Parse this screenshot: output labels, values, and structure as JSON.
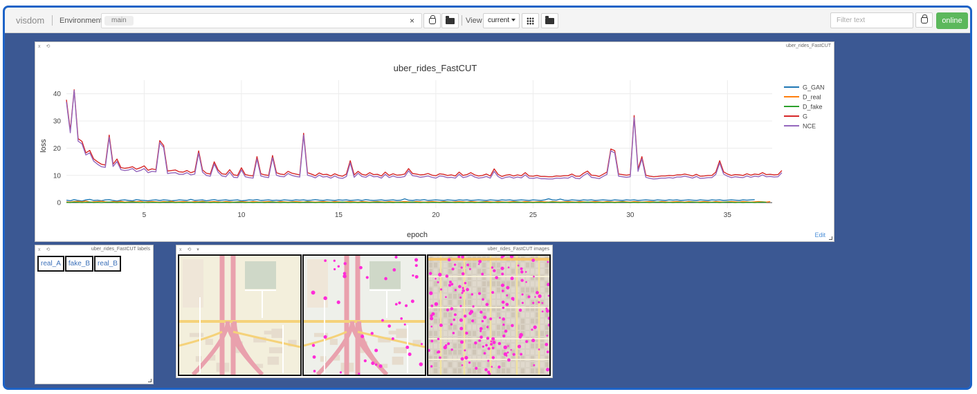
{
  "topbar": {
    "brand": "visdom",
    "environment_label": "Environment",
    "environment_tag": "main",
    "clear_symbol": "×",
    "view_label": "View",
    "view_value": "current",
    "filter_placeholder": "Filter text",
    "status": "online"
  },
  "plot_pane": {
    "window_title": "uber_rides_FastCUT",
    "edit_label": "Edit",
    "chart_data": {
      "type": "line",
      "title": "uber_rides_FastCUT",
      "xlabel": "epoch",
      "ylabel": "loss",
      "xlim": [
        1.0,
        37.3
      ],
      "ylim": [
        -2,
        45
      ],
      "x_ticks": [
        5,
        10,
        15,
        20,
        25,
        30,
        35
      ],
      "y_ticks": [
        0,
        10,
        20,
        30,
        40
      ],
      "grid": true,
      "legend_position": "right",
      "x_start": 1.0,
      "x_step": 0.2,
      "series": [
        {
          "name": "G_GAN",
          "color": "#1f77b4",
          "values": [
            0.9,
            0.7,
            1.1,
            0.8,
            0.6,
            1.0,
            1.2,
            0.8,
            0.9,
            0.7,
            1.0,
            1.1,
            0.8,
            0.6,
            0.9,
            1.0,
            0.8,
            0.7,
            1.1,
            0.9,
            0.8,
            0.7,
            0.9,
            1.0,
            0.8,
            1.0,
            0.9,
            0.7,
            0.8,
            1.0,
            0.9,
            0.8,
            1.2,
            0.8,
            0.9,
            1.0,
            0.7,
            0.9,
            1.1,
            0.8,
            0.9,
            1.0,
            0.8,
            0.9,
            1.0,
            0.7,
            0.8,
            1.0,
            0.9,
            1.1,
            0.8,
            0.9,
            1.0,
            0.8,
            0.9,
            0.8,
            1.0,
            0.9,
            0.8,
            1.0,
            0.9,
            1.0,
            0.8,
            0.9,
            1.1,
            0.9,
            0.8,
            1.0,
            0.9,
            0.8,
            1.0,
            0.9,
            1.0,
            0.8,
            0.9,
            1.0,
            0.8,
            1.1,
            0.9,
            0.8,
            0.9,
            1.0,
            0.8,
            0.9,
            1.0,
            0.8,
            0.9,
            1.4,
            0.9,
            0.8,
            1.0,
            0.9,
            1.1,
            0.8,
            0.9,
            1.0,
            0.9,
            0.8,
            1.0,
            0.9,
            0.8,
            1.0,
            0.9,
            1.0,
            0.8,
            0.9,
            1.0,
            0.9,
            0.8,
            1.0,
            0.9,
            0.8,
            1.0,
            0.9,
            1.0,
            0.8,
            0.9,
            1.0,
            0.9,
            0.8,
            1.0,
            0.9,
            0.8,
            1.0,
            1.4,
            1.0,
            0.9,
            1.3,
            0.9,
            0.8,
            1.0,
            0.9,
            0.8,
            1.0,
            0.9,
            1.0,
            0.8,
            0.9,
            1.0,
            0.9,
            0.8,
            1.0,
            0.9,
            0.8,
            1.0,
            0.9,
            1.0,
            0.8,
            0.9,
            1.0,
            0.9,
            0.8,
            1.0,
            0.9,
            0.8,
            1.0,
            0.9,
            1.0,
            0.8,
            0.9,
            1.0,
            0.9,
            0.8,
            1.0,
            0.9,
            0.8,
            1.0,
            0.9,
            1.0,
            0.8,
            0.9,
            1.0,
            0.9,
            0.8,
            1.0,
            0.9,
            1.0,
            1.1
          ]
        },
        {
          "name": "D_real",
          "color": "#ff7f0e",
          "values": [
            0.3,
            0.2,
            0.4,
            0.5,
            0.3,
            0.6,
            0.2,
            0.3,
            0.4,
            0.5,
            0.3,
            0.2,
            0.4,
            0.3,
            0.5,
            0.2,
            0.3,
            0.4,
            0.3,
            0.5,
            0.2,
            0.3,
            0.4,
            0.3,
            0.2,
            0.4,
            0.3,
            0.5,
            0.2,
            0.3,
            0.4,
            0.3,
            0.2,
            0.4,
            0.3,
            0.5,
            0.2,
            0.3,
            0.4,
            0.3,
            0.2,
            0.4,
            0.3,
            0.2,
            0.3,
            0.4,
            0.3,
            0.2,
            0.4,
            0.3,
            0.2,
            0.3,
            0.4,
            0.3,
            0.2,
            0.4,
            0.3,
            0.2,
            0.3,
            0.4,
            0.3,
            0.2,
            0.4,
            0.3,
            0.2,
            0.3,
            0.4,
            0.3,
            0.2,
            0.4,
            0.3,
            0.2,
            0.3,
            0.4,
            0.3,
            0.2,
            0.4,
            0.3,
            0.2,
            0.3,
            0.4,
            0.3,
            0.2,
            0.4,
            0.3,
            0.2,
            0.3,
            0.4,
            0.3,
            0.2,
            0.4,
            0.3,
            0.2,
            0.3,
            0.4,
            0.3,
            0.2,
            0.4,
            0.3,
            0.2,
            0.3,
            0.4,
            0.3,
            0.2,
            0.4,
            0.3,
            0.2,
            0.3,
            0.4,
            0.3,
            0.2,
            0.4,
            0.3,
            0.2,
            0.3,
            0.4,
            0.3,
            0.2,
            0.4,
            0.3,
            0.2,
            0.3,
            0.4,
            0.3,
            0.2,
            0.4,
            0.3,
            0.2,
            0.3,
            0.4,
            0.3,
            0.2,
            0.4,
            0.3,
            0.2,
            0.3,
            0.4,
            0.3,
            0.2,
            0.4,
            0.3,
            0.2,
            0.3,
            0.4,
            0.3,
            0.2,
            0.4,
            0.3,
            0.2,
            0.3,
            0.4,
            0.3,
            0.2,
            0.4,
            0.3,
            0.2,
            0.3,
            0.4,
            0.3,
            0.2,
            0.4,
            0.3,
            0.2,
            0.3,
            0.4,
            0.3,
            0.2,
            0.4,
            0.3,
            0.2,
            0.3,
            0.4,
            0.3,
            0.2,
            0.4,
            0.3,
            0.2,
            0.3,
            0.4,
            0.3,
            0.2,
            0.4
          ]
        },
        {
          "name": "D_fake",
          "color": "#2ca02c",
          "values": [
            0.1,
            0.0,
            0.2,
            0.1,
            0.0,
            0.1,
            0.2,
            0.0,
            0.1,
            0.0,
            0.1,
            0.2,
            0.1,
            0.0,
            0.1,
            0.0,
            0.1,
            0.2,
            0.1,
            0.0,
            0.1,
            0.0,
            0.1,
            0.1,
            0.0,
            0.1,
            0.2,
            0.1,
            0.0,
            0.1,
            0.0,
            0.1,
            0.1,
            0.0,
            0.1,
            0.2,
            0.1,
            0.0,
            0.1,
            0.0,
            0.1,
            0.1,
            0.0,
            0.1,
            0.2,
            0.1,
            0.0,
            0.1,
            0.0,
            0.1,
            0.1,
            0.0,
            0.1,
            0.2,
            0.1,
            0.0,
            0.1,
            0.0,
            0.1,
            0.1,
            0.0,
            0.1,
            0.2,
            0.1,
            0.0,
            0.1,
            0.0,
            0.1,
            0.1,
            0.0,
            0.1,
            0.2,
            0.1,
            0.0,
            0.1,
            0.0,
            0.1,
            0.1,
            0.0,
            0.1,
            0.2,
            0.1,
            0.0,
            0.1,
            0.0,
            0.1,
            0.1,
            0.0,
            0.1,
            0.2,
            0.1,
            0.0,
            0.1,
            0.0,
            0.1,
            0.1,
            0.0,
            0.1,
            0.2,
            0.1,
            0.0,
            0.1,
            0.0,
            0.1,
            0.1,
            0.0,
            0.1,
            0.2,
            0.1,
            0.0,
            0.1,
            0.0,
            0.1,
            0.1,
            0.0,
            0.1,
            0.2,
            0.1,
            0.0,
            0.1,
            0.0,
            0.1,
            0.1,
            0.0,
            0.1,
            0.2,
            0.1,
            0.0,
            0.1,
            0.0,
            0.1,
            0.1,
            0.0,
            0.1,
            0.2,
            0.1,
            0.0,
            0.1,
            0.0,
            0.1,
            0.1,
            0.0,
            0.1,
            0.2,
            0.1,
            0.0,
            0.1,
            0.0,
            0.1,
            0.1,
            0.0,
            0.1,
            0.2,
            0.1,
            0.0,
            0.1,
            0.0,
            0.1,
            0.1,
            0.0,
            0.1,
            0.2,
            0.1,
            0.0,
            0.1,
            0.0,
            0.1,
            0.1,
            0.0,
            0.1,
            0.2,
            0.1,
            0.0,
            0.1,
            0.0,
            0.1,
            0.1,
            0.0,
            0.1,
            0.2,
            0.1
          ]
        },
        {
          "name": "G",
          "color": "#d62728",
          "values": [
            37.8,
            26.5,
            41.5,
            23.5,
            22.5,
            18.3,
            19.2,
            16.1,
            15.0,
            14.1,
            13.8,
            24.8,
            14.1,
            16.0,
            12.9,
            12.6,
            12.8,
            13.2,
            12.3,
            12.8,
            13.5,
            11.9,
            12.4,
            12.1,
            22.8,
            21.0,
            11.6,
            11.8,
            12.0,
            11.3,
            11.2,
            11.8,
            11.0,
            11.5,
            19.0,
            12.0,
            10.8,
            10.5,
            15.0,
            12.0,
            10.6,
            10.4,
            12.1,
            10.2,
            10.0,
            12.8,
            10.3,
            10.0,
            9.8,
            16.9,
            10.6,
            10.2,
            10.0,
            17.3,
            11.0,
            10.5,
            10.3,
            11.5,
            10.8,
            10.5,
            10.2,
            25.5,
            11.0,
            10.5,
            9.9,
            10.9,
            10.3,
            10.4,
            9.8,
            10.6,
            10.0,
            9.7,
            10.5,
            15.4,
            10.2,
            11.5,
            10.4,
            10.1,
            11.0,
            10.3,
            10.4,
            9.8,
            11.2,
            10.0,
            10.6,
            10.1,
            10.2,
            10.5,
            12.5,
            10.7,
            10.5,
            10.2,
            10.3,
            10.7,
            10.1,
            9.9,
            10.6,
            10.4,
            10.0,
            10.2,
            9.8,
            11.2,
            10.0,
            10.3,
            11.0,
            10.2,
            9.8,
            10.0,
            10.5,
            9.8,
            12.4,
            10.4,
            9.6,
            10.1,
            10.3,
            9.8,
            10.2,
            9.9,
            11.0,
            9.8,
            9.7,
            10.0,
            9.6,
            9.6,
            9.5,
            9.5,
            9.8,
            9.7,
            9.9,
            9.9,
            10.5,
            9.7,
            9.7,
            10.8,
            11.6,
            10.1,
            10.0,
            9.6,
            10.4,
            11.2,
            19.7,
            19.1,
            10.5,
            10.3,
            10.1,
            10.3,
            32.0,
            12.3,
            16.9,
            10.1,
            9.7,
            9.5,
            9.6,
            9.8,
            9.8,
            10.0,
            9.9,
            10.2,
            10.2,
            10.5,
            10.2,
            9.8,
            10.4,
            9.7,
            9.8,
            10.0,
            10.0,
            11.2,
            15.4,
            11.3,
            10.5,
            10.0,
            10.3,
            10.2,
            10.0,
            10.6,
            10.1,
            10.5,
            10.3,
            11.0,
            10.3,
            10.4,
            10.2,
            10.3,
            11.8
          ]
        },
        {
          "name": "NCE",
          "color": "#9467bd",
          "values": [
            37.0,
            25.7,
            41.2,
            22.6,
            21.6,
            17.5,
            18.3,
            15.3,
            14.1,
            13.2,
            13.0,
            24.0,
            13.3,
            15.1,
            12.1,
            11.8,
            12.0,
            12.5,
            11.4,
            11.8,
            12.5,
            11.0,
            11.5,
            11.3,
            22.0,
            20.2,
            10.7,
            10.9,
            11.0,
            10.4,
            10.4,
            11.0,
            10.2,
            10.5,
            18.2,
            11.2,
            10.0,
            9.7,
            14.2,
            11.2,
            9.8,
            9.5,
            11.2,
            9.3,
            9.2,
            12.0,
            9.5,
            9.2,
            9.0,
            16.0,
            9.8,
            9.4,
            9.2,
            16.5,
            10.1,
            9.6,
            9.5,
            10.7,
            10.0,
            9.6,
            9.4,
            24.8,
            10.1,
            9.7,
            9.1,
            10.1,
            9.4,
            9.6,
            9.0,
            9.8,
            9.1,
            8.9,
            9.6,
            14.6,
            9.3,
            10.8,
            9.6,
            9.3,
            10.2,
            9.5,
            9.6,
            9.0,
            10.4,
            9.2,
            9.8,
            9.3,
            9.3,
            9.6,
            11.7,
            9.9,
            9.7,
            9.3,
            9.5,
            9.8,
            9.3,
            9.0,
            9.8,
            9.6,
            9.2,
            9.3,
            9.0,
            10.4,
            9.2,
            9.5,
            10.2,
            9.4,
            9.0,
            9.2,
            9.6,
            9.0,
            11.5,
            9.6,
            8.8,
            9.3,
            9.5,
            9.0,
            9.4,
            9.1,
            10.2,
            9.0,
            8.9,
            9.2,
            8.8,
            8.8,
            8.7,
            8.7,
            9.0,
            8.9,
            9.1,
            9.0,
            9.7,
            8.9,
            8.8,
            10.0,
            10.8,
            9.3,
            9.1,
            8.8,
            9.6,
            10.4,
            19.0,
            18.3,
            9.7,
            9.5,
            9.3,
            9.5,
            31.2,
            11.5,
            16.1,
            9.3,
            8.9,
            8.7,
            8.8,
            9.0,
            9.0,
            9.2,
            9.0,
            9.4,
            9.4,
            9.7,
            9.4,
            9.0,
            9.6,
            8.9,
            9.0,
            9.2,
            9.2,
            10.4,
            14.6,
            10.5,
            9.7,
            9.2,
            9.5,
            9.3,
            9.2,
            9.8,
            9.3,
            9.7,
            9.5,
            10.2,
            9.5,
            9.6,
            9.4,
            9.5,
            11.0
          ]
        }
      ]
    }
  },
  "labels_pane": {
    "window_title": "uber_rides_FastCUT labels",
    "labels": [
      "real_A",
      "fake_B",
      "real_B"
    ]
  },
  "images_pane": {
    "window_title": "uber_rides_FastCUT images"
  }
}
